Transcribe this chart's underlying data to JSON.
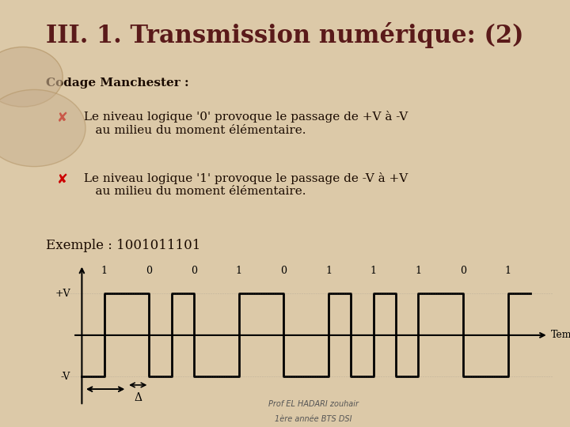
{
  "title": "III. 1. Transmission numérique: (2)",
  "subtitle": "Codage Manchester :",
  "bullet1": "✘  Le niveau logique '0' provoque le passage de +V à -V\n    au milieu du moment élémentaire.",
  "bullet2": "✘  Le niveau logique '1' provoque le passage de -V à +V\n    au milieu du moment élémentaire.",
  "example_label": "Exemple : 1001011101",
  "bits": [
    1,
    0,
    0,
    1,
    0,
    1,
    1,
    1,
    0,
    1
  ],
  "bit_labels": [
    "1",
    "0",
    "0",
    "1",
    "0",
    "1",
    "1",
    "1",
    "0",
    "1"
  ],
  "xlabel": "Temps",
  "ylabel_pos": "+V",
  "ylabel_neg": "-V",
  "delta_label": "Δ",
  "bg_color": "#dcc9a8",
  "slide_bg": "#f5f0e8",
  "title_color": "#5a1a1a",
  "text_color": "#1a0a00",
  "bullet_color": "#cc0000",
  "signal_color": "#000000",
  "footer1": "1ère année BTS DSI",
  "footer2": "Prof EL HADARI zouhair",
  "footer_color": "#555555"
}
